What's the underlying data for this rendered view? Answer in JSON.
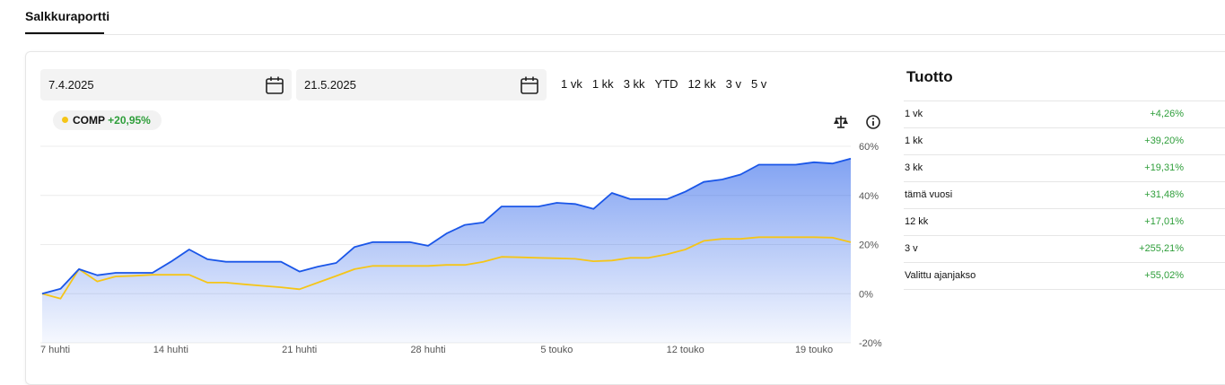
{
  "tab": "Salkkuraportti",
  "date_from": "7.4.2025",
  "date_to": "21.5.2025",
  "ranges": [
    "1 vk",
    "1 kk",
    "3 kk",
    "YTD",
    "12 kk",
    "3 v",
    "5 v"
  ],
  "chart_data": {
    "type": "line",
    "categories": [
      "7 huhti",
      null,
      null,
      null,
      null,
      null,
      null,
      "14 huhti",
      null,
      null,
      null,
      null,
      null,
      null,
      "21 huhti",
      null,
      null,
      null,
      null,
      null,
      null,
      "28 huhti",
      null,
      null,
      null,
      null,
      null,
      null,
      "5 touko",
      null,
      null,
      null,
      null,
      null,
      null,
      "12 touko",
      null,
      null,
      null,
      null,
      null,
      null,
      "19 touko",
      null,
      null
    ],
    "series": [
      {
        "color": "#1a56e8",
        "area": true,
        "values": [
          0,
          2,
          10,
          7.5,
          8.5,
          8.5,
          8.5,
          13,
          18,
          14,
          13,
          13,
          13,
          13,
          9,
          11,
          12.5,
          19,
          21,
          21,
          21,
          19.5,
          24.5,
          28,
          29,
          35.5,
          35.5,
          35.5,
          37,
          36.5,
          34.5,
          41,
          38.5,
          38.5,
          38.5,
          41.5,
          45.5,
          46.5,
          48.5,
          52.5,
          52.5,
          52.5,
          53.5,
          53,
          55
        ]
      },
      {
        "name": "COMP",
        "change_label": "+20,95%",
        "color": "#f5c518",
        "values": [
          0,
          -2,
          10,
          5,
          7,
          7.3,
          7.7,
          7.7,
          7.7,
          4.5,
          4.5,
          3.8,
          3.2,
          2.6,
          1.8,
          4.5,
          7.2,
          10,
          11.3,
          11.3,
          11.3,
          11.3,
          11.7,
          11.7,
          13,
          15,
          14.8,
          14.6,
          14.4,
          14.2,
          13.2,
          13.5,
          14.6,
          14.6,
          16,
          18,
          21.5,
          22.3,
          22.3,
          23,
          23,
          23,
          23,
          22.8,
          20.95
        ]
      }
    ],
    "ylim": [
      -20,
      60
    ],
    "yticks": [
      {
        "value": -20,
        "label": "-20%"
      },
      {
        "value": 0,
        "label": "0%"
      },
      {
        "value": 20,
        "label": "20%"
      },
      {
        "value": 40,
        "label": "40%"
      },
      {
        "value": 60,
        "label": "60%"
      }
    ],
    "grid": true
  },
  "returns": {
    "title": "Tuotto",
    "rows": [
      [
        "1 vk",
        "+4,26%"
      ],
      [
        "1 kk",
        "+39,20%"
      ],
      [
        "3 kk",
        "+19,31%"
      ],
      [
        "tämä vuosi",
        "+31,48%"
      ],
      [
        "12 kk",
        "+17,01%"
      ],
      [
        "3 v",
        "+255,21%"
      ],
      [
        "Valittu ajanjakso",
        "+55,02%"
      ]
    ]
  }
}
